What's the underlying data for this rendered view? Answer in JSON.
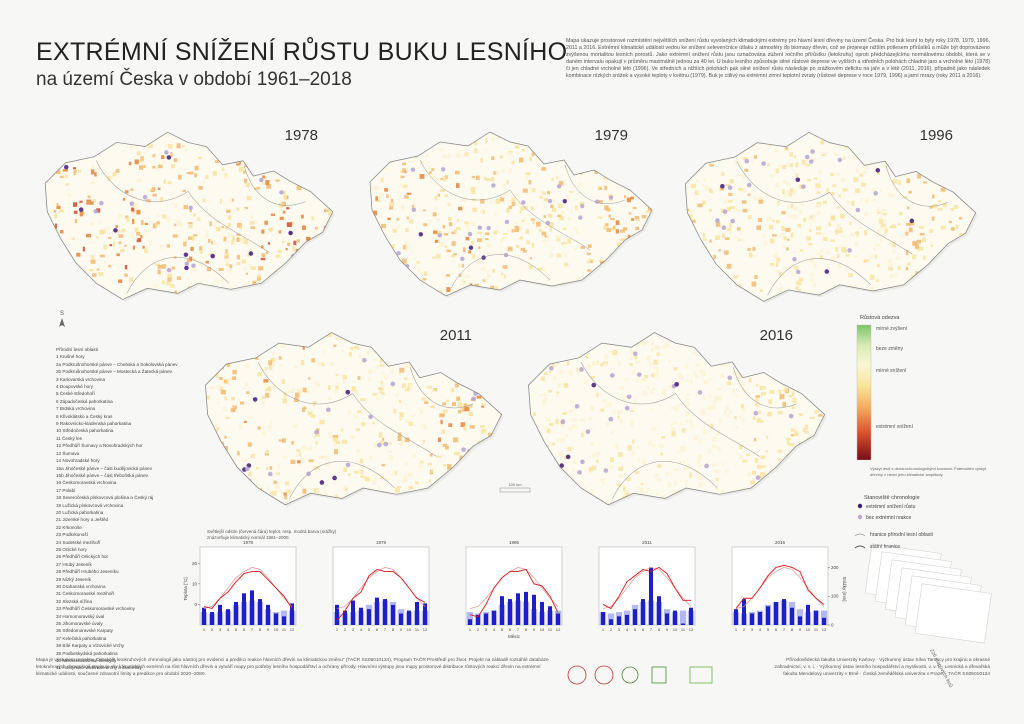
{
  "header": {
    "title": "EXTRÉMNÍ SNÍŽENÍ RŮSTU BUKU LESNÍHO",
    "subtitle": "na území Česka v období 1961–2018",
    "description": "Mapa ukazuje prostorové rozmístění největších snížení růstu vyvolaných klimatickými extrémy pro hlavní lesní dřeviny na území Česka. Pro buk lesní to byly roky 1978, 1979, 1996, 2011 a 2016. Extrémní klimatické události vedou ke snížení selevenčnice útlaku z atmosféry do biomasy dřevin, což se projevuje nižším potlesem přírůstků a může být doprovázeno zvýšenou mortalitou lesních porostů. Jako extrémní snížení růstu jsou označována zúžení ročního přírůstku (letokruhu) oproti předcházejícímu normálovému období, která se v daném intervalu opakují v průměru maximálně jednou za 40 let. U buku lesního způsobuje silné růstové deprese ve vyšších a středních polohách chladné jaro a vrcholné léto (1978) či jen chladné vrcholné léto (1996). Ve středních a nižších polohách pak silné snížení růstu následuje po srážkovém deficitu na jaře a v létě (2011, 2016), případně jako následek kombinace nízkých srážek a vysoké teploty v květnu (1979). Buk je citlivý na extrémní zimní teplotní zvraty (růstové deprese v roce 1979, 1996) a jarní mrazy (roky 2011 a 2016)."
  },
  "maps": [
    {
      "year": "1978"
    },
    {
      "year": "1979"
    },
    {
      "year": "1996"
    },
    {
      "year": "2011"
    },
    {
      "year": "2016"
    }
  ],
  "north": "S",
  "scale": "100 km",
  "regions": {
    "title": "Přírodní lesní oblasti",
    "items": [
      "1 Krušné hory",
      "2a Podkrušnohorské pánve – Chebská a Sokolovská pánev",
      "2b Podkrušnohorské pánve – Mostecká a Žatecká pánev",
      "3 Karlovarská vrchovina",
      "4 Doupovské hory",
      "5 České středohoří",
      "6 Západočeská pahorkatina",
      "7 Brdská vrchovina",
      "8 Křivoklátsko a Český kras",
      "9 Rakovnicko-kladenská pahorkatina",
      "10 Středočeská pahorkatina",
      "11 Český les",
      "12 Předhůří Šumavy a Novohradských hor",
      "13 Šumava",
      "14 Novohradské hory",
      "15a Jihočeské pánve – část budějovická pánev",
      "15b Jihočeské pánve – část třeboňská pánev",
      "16 Českomoravská vrchovina",
      "17 Polabí",
      "18 Severočeská pískovcová plošina a Český ráj",
      "19 Lužická pískovcová vrchovina",
      "20 Lužická pahorkatina",
      "21 Jizerské hory a Ještěd",
      "22 Krkonoše",
      "23 Podkrkonoší",
      "24 Sudetské mezihoří",
      "25 Orlické hory",
      "26 Předhůří Orlických hor",
      "27 Hrubý Jeseník",
      "28 Předhůří Hrubého Jeseníku",
      "29 Nízký Jeseník",
      "30 Drahanská vrchovina",
      "31 Českomoravské mezihoří",
      "32 Slezská nížina",
      "33 Předhůří Českomoravské vrchoviny",
      "34 Hornomoravský úval",
      "35 Jihomoravské úvaly",
      "36 Středomoravské Karpaty",
      "37 Kelečská pahorkatina",
      "38 Bílé Karpaty a Vizovické vrchy",
      "39 Podbeskydská pahorkatina",
      "40 Moravskoslezské Beskydy",
      "41 Hostýnsko-vsetínské vrchy a Javorníky"
    ]
  },
  "legend": {
    "title": "Růstová odezva",
    "levels": [
      "mírné zvýšení",
      "beze změny",
      "mírné snížení",
      "extrémní snížení"
    ],
    "note": "Výskyt lesů s dendrochronologickými sondami. Potenciální výskyt dřeviny v rámci jeho klimatické amplitudy.",
    "stations_title": "Stanoviště chronologie",
    "stations": [
      "extrémní snížení růstu",
      "bez extrémní reakce"
    ],
    "lines": [
      "hranice přírodní lesní oblasti",
      "státní hranice"
    ]
  },
  "climate": {
    "caption": "Světlejší odstín (červená čára) teplot, resp. modrá barva (srážky) znázorňuje klimatický normál 1961–2000.",
    "temp_label": "Teplota [°C]",
    "precip_label": "Srážky [mm]",
    "x_label": "Měsíc",
    "months": [
      1,
      2,
      3,
      4,
      5,
      6,
      7,
      8,
      9,
      10,
      11,
      12
    ],
    "tlim": [
      -10,
      25
    ],
    "tticks": [
      0,
      10,
      20
    ],
    "plim": [
      0,
      250
    ],
    "pticks": [
      0,
      100,
      200
    ],
    "normal_precip": [
      45,
      40,
      45,
      50,
      70,
      80,
      85,
      80,
      55,
      45,
      50,
      50
    ],
    "normal_temp": [
      -2,
      -1,
      3,
      8,
      13,
      16,
      18,
      17,
      13,
      8,
      3,
      -1
    ],
    "charts": [
      {
        "precip": [
          60,
          45,
          70,
          55,
          80,
          110,
          120,
          90,
          70,
          40,
          30,
          75
        ],
        "temp": [
          -1,
          -2,
          3,
          6,
          11,
          15,
          16,
          16,
          12,
          8,
          4,
          -2
        ]
      },
      {
        "precip": [
          70,
          50,
          85,
          60,
          55,
          95,
          90,
          70,
          40,
          50,
          80,
          75
        ],
        "temp": [
          -8,
          -3,
          3,
          6,
          14,
          17,
          16,
          16,
          13,
          8,
          3,
          1
        ]
      },
      {
        "precip": [
          20,
          35,
          40,
          50,
          100,
          90,
          110,
          115,
          105,
          80,
          65,
          40
        ],
        "temp": [
          -5,
          -6,
          0,
          8,
          13,
          16,
          16,
          17,
          10,
          9,
          4,
          -4
        ]
      },
      {
        "precip": [
          45,
          20,
          30,
          35,
          55,
          90,
          200,
          100,
          40,
          50,
          5,
          60
        ],
        "temp": [
          0,
          -2,
          4,
          11,
          14,
          17,
          16,
          18,
          15,
          8,
          2,
          2
        ]
      },
      {
        "precip": [
          55,
          90,
          40,
          45,
          65,
          80,
          90,
          60,
          30,
          70,
          50,
          25
        ],
        "temp": [
          -2,
          3,
          3,
          8,
          14,
          18,
          19,
          18,
          16,
          7,
          3,
          0
        ]
      }
    ]
  },
  "sheets": "226 mapových listů",
  "footer": {
    "left": "Mapa je výstupem projektu „Dotvádět letokruhových chronologií jako nástroj pro evidenci a predikci reakce hlavních dřevin na klimatickou změnu“ (TAČR SS05010134), Program TAČR Prostředí pro život. Projekt na základě rozsáhlé databáze letokruhových chronologií popisuje vliv klimatických extrémů na růst hlavních dřevin a vytváří mapy pro potřeby lesního hospodářství a ochrany přírody. Hlavními výstupy jsou mapy prostorové distribuce růstových reakcí dřevin na extrémní klimatické události, současné zdravotní limity a predikce pro období 2020–2080.",
    "right": "Přírodovědecká fakulta Univerzity Karlovy · Výzkumný ústav Silva Taroucy pro krajinu a okrasné zahradnictví, v. v. i. · Výzkumný ústav lesního hospodářství a myslivosti, v. v. i. · Lesnická a dřevařská fakulta Mendelovy univerzity v Brně · Česká zemědělská univerzita v Praze – TAČR SS05010134"
  }
}
